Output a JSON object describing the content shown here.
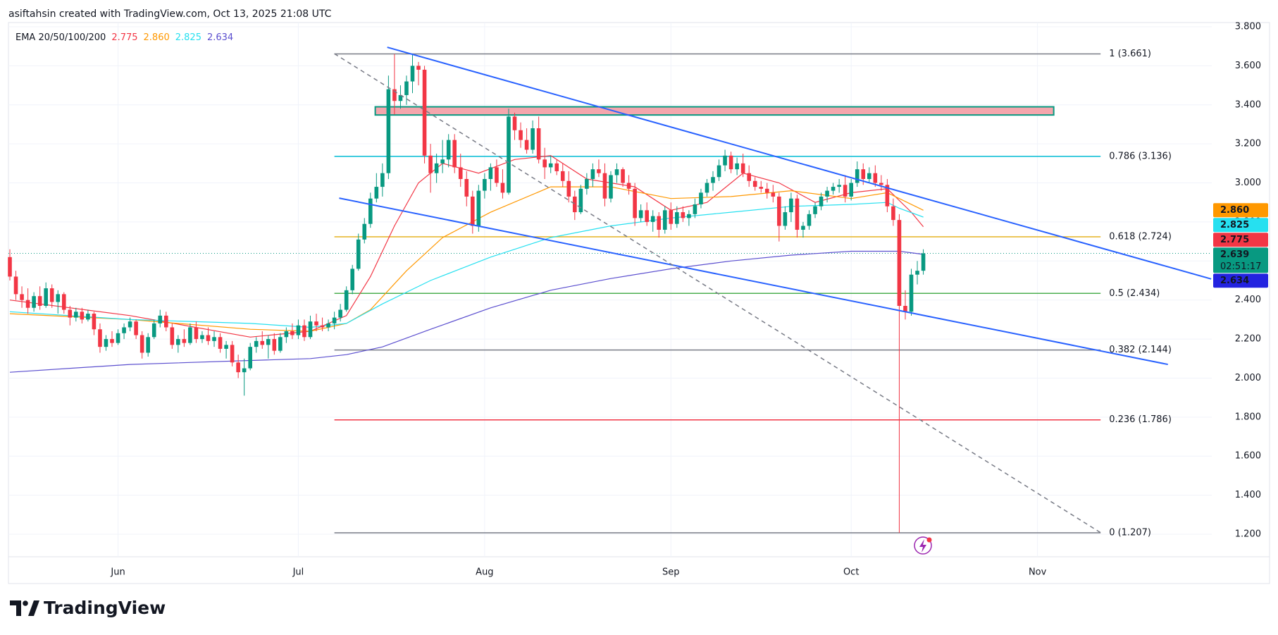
{
  "header": "asiftahsin created with TradingView.com, Oct 13, 2025 21:08 UTC",
  "watermark": "TradingView",
  "chart_data": {
    "type": "candlestick",
    "up_color": "#089981",
    "down_color": "#f23645",
    "xlim": [
      0,
      200
    ],
    "xticks": [
      {
        "value": 18,
        "label": "Jun"
      },
      {
        "value": 48,
        "label": "Jul"
      },
      {
        "value": 79,
        "label": "Aug"
      },
      {
        "value": 110,
        "label": "Sep"
      },
      {
        "value": 140,
        "label": "Oct"
      },
      {
        "value": 171,
        "label": "Nov"
      }
    ],
    "ylim": [
      1.2,
      3.8
    ],
    "yticks": [
      {
        "value": 3.8,
        "label": "3.800"
      },
      {
        "value": 3.6,
        "label": "3.600"
      },
      {
        "value": 3.4,
        "label": "3.400"
      },
      {
        "value": 3.2,
        "label": "3.200"
      },
      {
        "value": 3.0,
        "label": "3.000"
      },
      {
        "value": 2.8,
        "label": "2.800"
      },
      {
        "value": 2.6,
        "label": "2.600"
      },
      {
        "value": 2.4,
        "label": "2.400"
      },
      {
        "value": 2.2,
        "label": "2.200"
      },
      {
        "value": 2.0,
        "label": "2.000"
      },
      {
        "value": 1.8,
        "label": "1.800"
      },
      {
        "value": 1.6,
        "label": "1.600"
      },
      {
        "value": 1.4,
        "label": "1.400"
      },
      {
        "value": 1.2,
        "label": "1.200"
      }
    ],
    "grid": true,
    "ohlc": [
      [
        2.62,
        2.66,
        2.5,
        2.52
      ],
      [
        2.52,
        2.55,
        2.4,
        2.43
      ],
      [
        2.43,
        2.47,
        2.36,
        2.4
      ],
      [
        2.4,
        2.46,
        2.33,
        2.36
      ],
      [
        2.36,
        2.44,
        2.34,
        2.42
      ],
      [
        2.42,
        2.47,
        2.35,
        2.37
      ],
      [
        2.37,
        2.49,
        2.36,
        2.46
      ],
      [
        2.46,
        2.48,
        2.36,
        2.39
      ],
      [
        2.39,
        2.45,
        2.33,
        2.43
      ],
      [
        2.43,
        2.44,
        2.33,
        2.35
      ],
      [
        2.35,
        2.37,
        2.27,
        2.31
      ],
      [
        2.31,
        2.36,
        2.29,
        2.34
      ],
      [
        2.34,
        2.36,
        2.28,
        2.3
      ],
      [
        2.3,
        2.35,
        2.29,
        2.33
      ],
      [
        2.33,
        2.34,
        2.22,
        2.25
      ],
      [
        2.25,
        2.28,
        2.13,
        2.16
      ],
      [
        2.16,
        2.22,
        2.14,
        2.2
      ],
      [
        2.2,
        2.24,
        2.16,
        2.18
      ],
      [
        2.18,
        2.25,
        2.17,
        2.23
      ],
      [
        2.23,
        2.28,
        2.2,
        2.26
      ],
      [
        2.26,
        2.31,
        2.24,
        2.29
      ],
      [
        2.29,
        2.3,
        2.2,
        2.22
      ],
      [
        2.22,
        2.24,
        2.1,
        2.13
      ],
      [
        2.13,
        2.23,
        2.11,
        2.21
      ],
      [
        2.21,
        2.3,
        2.2,
        2.28
      ],
      [
        2.28,
        2.35,
        2.26,
        2.32
      ],
      [
        2.32,
        2.34,
        2.24,
        2.26
      ],
      [
        2.26,
        2.28,
        2.15,
        2.17
      ],
      [
        2.17,
        2.22,
        2.13,
        2.2
      ],
      [
        2.2,
        2.25,
        2.16,
        2.18
      ],
      [
        2.18,
        2.28,
        2.17,
        2.26
      ],
      [
        2.26,
        2.29,
        2.18,
        2.2
      ],
      [
        2.2,
        2.24,
        2.18,
        2.22
      ],
      [
        2.22,
        2.26,
        2.17,
        2.19
      ],
      [
        2.19,
        2.24,
        2.16,
        2.21
      ],
      [
        2.21,
        2.23,
        2.13,
        2.15
      ],
      [
        2.15,
        2.19,
        2.1,
        2.17
      ],
      [
        2.17,
        2.19,
        2.06,
        2.08
      ],
      [
        2.08,
        2.12,
        2.0,
        2.03
      ],
      [
        2.03,
        2.1,
        1.91,
        2.05
      ],
      [
        2.05,
        2.18,
        2.04,
        2.16
      ],
      [
        2.16,
        2.21,
        2.13,
        2.19
      ],
      [
        2.19,
        2.24,
        2.15,
        2.17
      ],
      [
        2.17,
        2.22,
        2.1,
        2.2
      ],
      [
        2.2,
        2.23,
        2.12,
        2.14
      ],
      [
        2.14,
        2.23,
        2.13,
        2.21
      ],
      [
        2.21,
        2.26,
        2.18,
        2.24
      ],
      [
        2.24,
        2.28,
        2.2,
        2.22
      ],
      [
        2.22,
        2.3,
        2.2,
        2.27
      ],
      [
        2.27,
        2.3,
        2.19,
        2.21
      ],
      [
        2.21,
        2.32,
        2.2,
        2.29
      ],
      [
        2.29,
        2.33,
        2.24,
        2.27
      ],
      [
        2.27,
        2.31,
        2.24,
        2.26
      ],
      [
        2.26,
        2.3,
        2.24,
        2.28
      ],
      [
        2.28,
        2.34,
        2.25,
        2.31
      ],
      [
        2.31,
        2.38,
        2.29,
        2.35
      ],
      [
        2.35,
        2.47,
        2.34,
        2.45
      ],
      [
        2.45,
        2.58,
        2.43,
        2.56
      ],
      [
        2.56,
        2.74,
        2.55,
        2.71
      ],
      [
        2.71,
        2.82,
        2.69,
        2.79
      ],
      [
        2.79,
        2.95,
        2.77,
        2.92
      ],
      [
        2.92,
        3.05,
        2.9,
        2.98
      ],
      [
        2.98,
        3.1,
        2.93,
        3.05
      ],
      [
        3.05,
        3.55,
        3.02,
        3.48
      ],
      [
        3.48,
        3.66,
        3.35,
        3.42
      ],
      [
        3.42,
        3.5,
        3.38,
        3.45
      ],
      [
        3.45,
        3.55,
        3.4,
        3.52
      ],
      [
        3.52,
        3.66,
        3.46,
        3.6
      ],
      [
        3.6,
        3.62,
        3.5,
        3.58
      ],
      [
        3.58,
        3.6,
        3.1,
        3.14
      ],
      [
        3.14,
        3.2,
        2.95,
        3.05
      ],
      [
        3.05,
        3.15,
        3.0,
        3.1
      ],
      [
        3.1,
        3.22,
        3.05,
        3.12
      ],
      [
        3.12,
        3.25,
        3.08,
        3.22
      ],
      [
        3.22,
        3.25,
        3.05,
        3.08
      ],
      [
        3.08,
        3.15,
        2.98,
        3.02
      ],
      [
        3.02,
        3.06,
        2.88,
        2.93
      ],
      [
        2.93,
        2.96,
        2.74,
        2.78
      ],
      [
        2.78,
        2.99,
        2.75,
        2.96
      ],
      [
        2.96,
        3.05,
        2.92,
        3.02
      ],
      [
        3.02,
        3.1,
        2.96,
        3.08
      ],
      [
        3.08,
        3.12,
        2.98,
        3.0
      ],
      [
        3.0,
        3.07,
        2.92,
        2.95
      ],
      [
        2.95,
        3.38,
        2.94,
        3.34
      ],
      [
        3.34,
        3.36,
        3.22,
        3.27
      ],
      [
        3.27,
        3.31,
        3.18,
        3.22
      ],
      [
        3.22,
        3.28,
        3.15,
        3.17
      ],
      [
        3.17,
        3.32,
        3.15,
        3.28
      ],
      [
        3.28,
        3.34,
        3.1,
        3.12
      ],
      [
        3.12,
        3.18,
        3.02,
        3.08
      ],
      [
        3.08,
        3.14,
        3.05,
        3.1
      ],
      [
        3.1,
        3.12,
        3.04,
        3.06
      ],
      [
        3.06,
        3.1,
        2.98,
        3.01
      ],
      [
        3.01,
        3.06,
        2.9,
        2.93
      ],
      [
        2.93,
        2.96,
        2.81,
        2.85
      ],
      [
        2.85,
        2.99,
        2.84,
        2.97
      ],
      [
        2.97,
        3.05,
        2.94,
        3.02
      ],
      [
        3.02,
        3.1,
        2.98,
        3.07
      ],
      [
        3.07,
        3.12,
        3.03,
        3.05
      ],
      [
        3.05,
        3.1,
        2.88,
        2.92
      ],
      [
        2.92,
        3.06,
        2.9,
        3.04
      ],
      [
        3.04,
        3.1,
        3.0,
        3.07
      ],
      [
        3.07,
        3.08,
        2.98,
        3.0
      ],
      [
        3.0,
        3.04,
        2.94,
        2.97
      ],
      [
        2.97,
        3.0,
        2.78,
        2.82
      ],
      [
        2.82,
        2.89,
        2.8,
        2.86
      ],
      [
        2.86,
        2.9,
        2.78,
        2.8
      ],
      [
        2.8,
        2.86,
        2.75,
        2.83
      ],
      [
        2.83,
        2.85,
        2.72,
        2.76
      ],
      [
        2.76,
        2.88,
        2.74,
        2.86
      ],
      [
        2.86,
        2.9,
        2.76,
        2.79
      ],
      [
        2.79,
        2.88,
        2.77,
        2.85
      ],
      [
        2.85,
        2.88,
        2.8,
        2.82
      ],
      [
        2.82,
        2.86,
        2.78,
        2.84
      ],
      [
        2.84,
        2.92,
        2.82,
        2.89
      ],
      [
        2.89,
        2.97,
        2.87,
        2.95
      ],
      [
        2.95,
        3.02,
        2.93,
        3.0
      ],
      [
        3.0,
        3.06,
        2.96,
        3.03
      ],
      [
        3.03,
        3.12,
        3.01,
        3.09
      ],
      [
        3.09,
        3.17,
        3.06,
        3.14
      ],
      [
        3.14,
        3.16,
        3.05,
        3.07
      ],
      [
        3.07,
        3.13,
        3.04,
        3.1
      ],
      [
        3.1,
        3.15,
        3.03,
        3.05
      ],
      [
        3.05,
        3.09,
        2.98,
        3.01
      ],
      [
        3.01,
        3.03,
        2.96,
        2.98
      ],
      [
        2.98,
        3.01,
        2.95,
        2.97
      ],
      [
        2.97,
        3.0,
        2.92,
        2.95
      ],
      [
        2.95,
        2.99,
        2.9,
        2.93
      ],
      [
        2.93,
        2.95,
        2.7,
        2.78
      ],
      [
        2.78,
        2.88,
        2.76,
        2.85
      ],
      [
        2.85,
        2.95,
        2.8,
        2.92
      ],
      [
        2.92,
        2.94,
        2.72,
        2.76
      ],
      [
        2.76,
        2.8,
        2.72,
        2.78
      ],
      [
        2.78,
        2.86,
        2.76,
        2.84
      ],
      [
        2.84,
        2.9,
        2.82,
        2.88
      ],
      [
        2.88,
        2.95,
        2.86,
        2.93
      ],
      [
        2.93,
        2.98,
        2.9,
        2.96
      ],
      [
        2.96,
        3.0,
        2.94,
        2.98
      ],
      [
        2.98,
        3.02,
        2.95,
        2.99
      ],
      [
        2.99,
        3.04,
        2.9,
        2.93
      ],
      [
        2.93,
        3.02,
        2.91,
        3.0
      ],
      [
        3.0,
        3.11,
        2.98,
        3.07
      ],
      [
        3.07,
        3.1,
        2.99,
        3.02
      ],
      [
        3.02,
        3.08,
        3.0,
        3.05
      ],
      [
        3.05,
        3.09,
        2.98,
        3.0
      ],
      [
        3.0,
        3.04,
        2.96,
        2.99
      ],
      [
        2.99,
        3.02,
        2.85,
        2.88
      ],
      [
        2.88,
        2.92,
        2.78,
        2.81
      ],
      [
        2.81,
        2.84,
        1.207,
        2.37
      ],
      [
        2.37,
        2.45,
        2.3,
        2.34
      ],
      [
        2.34,
        2.56,
        2.32,
        2.53
      ],
      [
        2.53,
        2.6,
        2.48,
        2.55
      ],
      [
        2.55,
        2.66,
        2.53,
        2.639
      ]
    ],
    "ema": {
      "label": "EMA 20/50/100/200",
      "lines": [
        {
          "color": "#f23645",
          "last": {
            "value": 2.775,
            "label": "2.775"
          },
          "x": [
            0,
            20,
            40,
            50,
            56,
            60,
            64,
            68,
            72,
            78,
            84,
            90,
            96,
            104,
            110,
            116,
            122,
            128,
            134,
            140,
            146,
            150,
            152
          ],
          "values": [
            2.4,
            2.32,
            2.21,
            2.24,
            2.32,
            2.52,
            2.78,
            3.0,
            3.1,
            3.05,
            3.12,
            3.14,
            3.02,
            2.98,
            2.86,
            2.9,
            3.05,
            3.0,
            2.9,
            2.95,
            2.97,
            2.85,
            2.775
          ]
        },
        {
          "color": "#ff9800",
          "last": {
            "value": 2.86,
            "label": "2.860"
          },
          "x": [
            0,
            20,
            40,
            50,
            56,
            60,
            66,
            72,
            80,
            90,
            100,
            110,
            120,
            130,
            140,
            146,
            152
          ],
          "values": [
            2.33,
            2.3,
            2.25,
            2.24,
            2.28,
            2.35,
            2.55,
            2.72,
            2.85,
            2.98,
            2.98,
            2.92,
            2.93,
            2.96,
            2.92,
            2.95,
            2.86
          ]
        },
        {
          "color": "#26e0f0",
          "last": {
            "value": 2.825,
            "label": "2.825"
          },
          "x": [
            0,
            20,
            40,
            50,
            56,
            62,
            70,
            80,
            90,
            100,
            110,
            120,
            130,
            140,
            146,
            148,
            152
          ],
          "values": [
            2.34,
            2.3,
            2.28,
            2.26,
            2.28,
            2.38,
            2.5,
            2.62,
            2.72,
            2.78,
            2.82,
            2.85,
            2.88,
            2.89,
            2.9,
            2.87,
            2.825
          ]
        },
        {
          "color": "#5b4fcf",
          "badge_color": "#2323e0",
          "last": {
            "value": 2.634,
            "label": "2.634"
          },
          "x": [
            0,
            20,
            40,
            50,
            56,
            62,
            70,
            80,
            90,
            100,
            110,
            120,
            130,
            140,
            148,
            152
          ],
          "values": [
            2.03,
            2.07,
            2.09,
            2.1,
            2.12,
            2.16,
            2.25,
            2.36,
            2.45,
            2.51,
            2.56,
            2.6,
            2.63,
            2.65,
            2.65,
            2.634
          ]
        }
      ]
    },
    "last_price": {
      "value": 2.639,
      "label": "2.639",
      "countdown": "02:51:17",
      "color": "#089981"
    },
    "fib": {
      "x_start": 54,
      "x_end": 181.5,
      "levels": [
        {
          "price": 3.661,
          "label": "1 (3.661)",
          "color": "#787b86"
        },
        {
          "price": 3.136,
          "label": "0.786 (3.136)",
          "color": "#00bcd4"
        },
        {
          "price": 2.724,
          "label": "0.618 (2.724)",
          "color": "#e6b422"
        },
        {
          "price": 2.434,
          "label": "0.5 (2.434)",
          "color": "#4caf50"
        },
        {
          "price": 2.144,
          "label": "0.382 (2.144)",
          "color": "#787b86"
        },
        {
          "price": 1.786,
          "label": "0.236 (1.786)",
          "color": "#f23645"
        },
        {
          "price": 1.207,
          "label": "0 (1.207)",
          "color": "#787b86"
        }
      ]
    },
    "trendlines": [
      {
        "color": "#2962ff",
        "points": [
          [
            62.8,
            3.695
          ],
          [
            199.9,
            2.508
          ]
        ]
      },
      {
        "color": "#2962ff",
        "points": [
          [
            54.8,
            2.922
          ],
          [
            192.7,
            2.07
          ]
        ]
      },
      {
        "color": "#787b86",
        "dashed": true,
        "points": [
          [
            54,
            3.662
          ],
          [
            181.5,
            1.208
          ]
        ]
      }
    ],
    "zone": {
      "x": [
        60.8,
        173.7
      ],
      "y": [
        3.348,
        3.39
      ],
      "fill": "#f4a6ad",
      "border": "#089981"
    }
  }
}
